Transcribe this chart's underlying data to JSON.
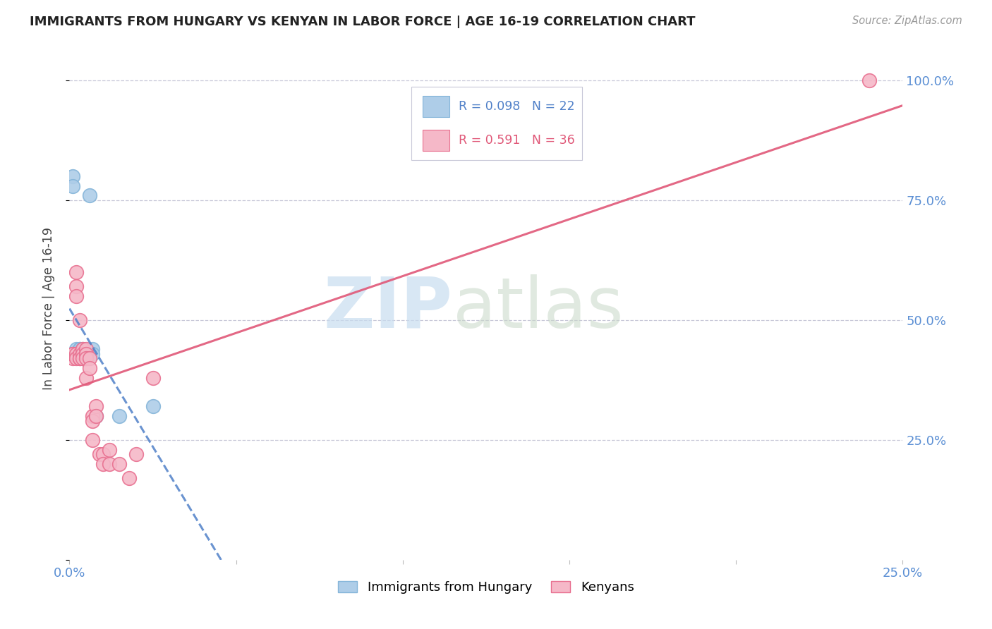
{
  "title": "IMMIGRANTS FROM HUNGARY VS KENYAN IN LABOR FORCE | AGE 16-19 CORRELATION CHART",
  "source": "Source: ZipAtlas.com",
  "ylabel": "In Labor Force | Age 16-19",
  "xlim": [
    0.0,
    0.25
  ],
  "ylim": [
    0.0,
    1.05
  ],
  "yticks": [
    0.0,
    0.25,
    0.5,
    0.75,
    1.0
  ],
  "ytick_labels": [
    "",
    "25.0%",
    "50.0%",
    "75.0%",
    "100.0%"
  ],
  "xtick_positions": [
    0.0,
    0.05,
    0.1,
    0.15,
    0.2,
    0.25
  ],
  "xtick_labels": [
    "0.0%",
    "",
    "",
    "",
    "",
    "25.0%"
  ],
  "hungary_color": "#aecde8",
  "kenya_color": "#f5b8c8",
  "hungary_edge": "#85b5d9",
  "kenya_edge": "#e87090",
  "hungary_R": 0.098,
  "hungary_N": 22,
  "kenya_R": 0.591,
  "kenya_N": 36,
  "hungary_line_color": "#5080c8",
  "kenya_line_color": "#e05878",
  "hungary_x": [
    0.001,
    0.001,
    0.002,
    0.002,
    0.002,
    0.003,
    0.003,
    0.003,
    0.004,
    0.004,
    0.004,
    0.004,
    0.004,
    0.005,
    0.005,
    0.005,
    0.006,
    0.007,
    0.007,
    0.008,
    0.015,
    0.025
  ],
  "hungary_y": [
    0.8,
    0.78,
    0.44,
    0.43,
    0.43,
    0.44,
    0.44,
    0.43,
    0.44,
    0.43,
    0.43,
    0.42,
    0.42,
    0.43,
    0.42,
    0.42,
    0.76,
    0.44,
    0.43,
    0.3,
    0.3,
    0.32
  ],
  "kenya_x": [
    0.001,
    0.001,
    0.001,
    0.002,
    0.002,
    0.002,
    0.002,
    0.002,
    0.003,
    0.003,
    0.003,
    0.003,
    0.004,
    0.004,
    0.004,
    0.005,
    0.005,
    0.005,
    0.005,
    0.006,
    0.006,
    0.007,
    0.007,
    0.007,
    0.008,
    0.008,
    0.009,
    0.01,
    0.01,
    0.012,
    0.012,
    0.015,
    0.018,
    0.02,
    0.025,
    0.24
  ],
  "kenya_y": [
    0.43,
    0.42,
    0.43,
    0.6,
    0.57,
    0.55,
    0.43,
    0.42,
    0.5,
    0.42,
    0.43,
    0.42,
    0.44,
    0.43,
    0.42,
    0.44,
    0.43,
    0.42,
    0.38,
    0.42,
    0.4,
    0.3,
    0.29,
    0.25,
    0.32,
    0.3,
    0.22,
    0.22,
    0.2,
    0.23,
    0.2,
    0.2,
    0.17,
    0.22,
    0.38,
    1.0
  ],
  "title_color": "#222222",
  "source_color": "#999999",
  "axis_tick_color": "#5b8fd4",
  "grid_color": "#c8c8d8",
  "background_color": "#ffffff",
  "watermark_zip_color": "#c8ddf0",
  "watermark_atlas_color": "#c8d8c8"
}
